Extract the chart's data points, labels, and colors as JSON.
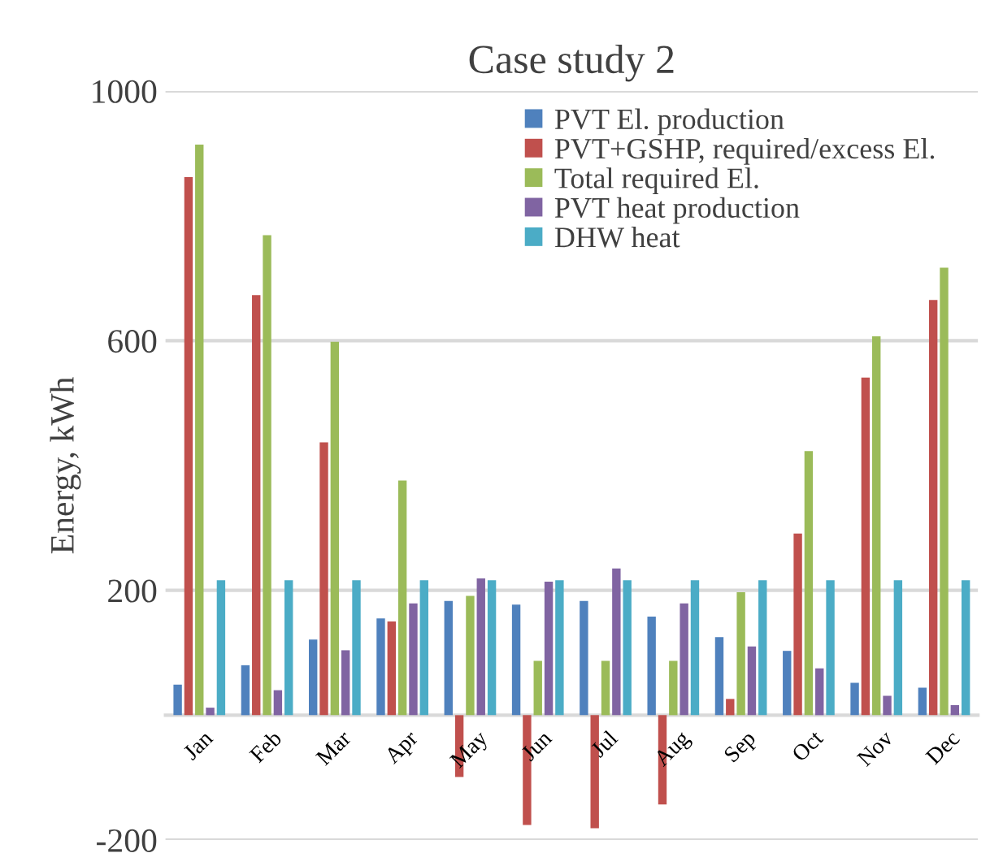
{
  "chart_data": {
    "type": "bar",
    "title": "Case study 2",
    "ylabel": "Energy, kWh",
    "categories": [
      "Jan",
      "Feb",
      "Mar",
      "Apr",
      "May",
      "Jun",
      "Jul",
      "Aug",
      "Sep",
      "Oct",
      "Nov",
      "Dec"
    ],
    "series": [
      {
        "name": "PVT El. production",
        "color": "#4f81bd",
        "values": [
          49,
          80,
          121,
          155,
          183,
          177,
          183,
          158,
          125,
          103,
          52,
          44
        ]
      },
      {
        "name": "PVT+GSHP, required/excess El.",
        "color": "#c0504d",
        "values": [
          862,
          673,
          437,
          150,
          -99,
          -176,
          -181,
          -143,
          26,
          291,
          541,
          665
        ]
      },
      {
        "name": "Total required El.",
        "color": "#9bbb59",
        "values": [
          914,
          769,
          598,
          376,
          191,
          87,
          87,
          87,
          197,
          423,
          607,
          717
        ]
      },
      {
        "name": "PVT heat production",
        "color": "#8064a2",
        "values": [
          12,
          40,
          104,
          179,
          219,
          214,
          235,
          179,
          110,
          75,
          31,
          16
        ]
      },
      {
        "name": "DHW heat",
        "color": "#4bacc6",
        "values": [
          216,
          216,
          216,
          216,
          216,
          216,
          216,
          216,
          216,
          216,
          216,
          216
        ]
      }
    ],
    "ylim": [
      -200,
      1000
    ],
    "yticks": [
      -200,
      200,
      600,
      1000
    ],
    "grid": "y",
    "legend": "top right"
  }
}
